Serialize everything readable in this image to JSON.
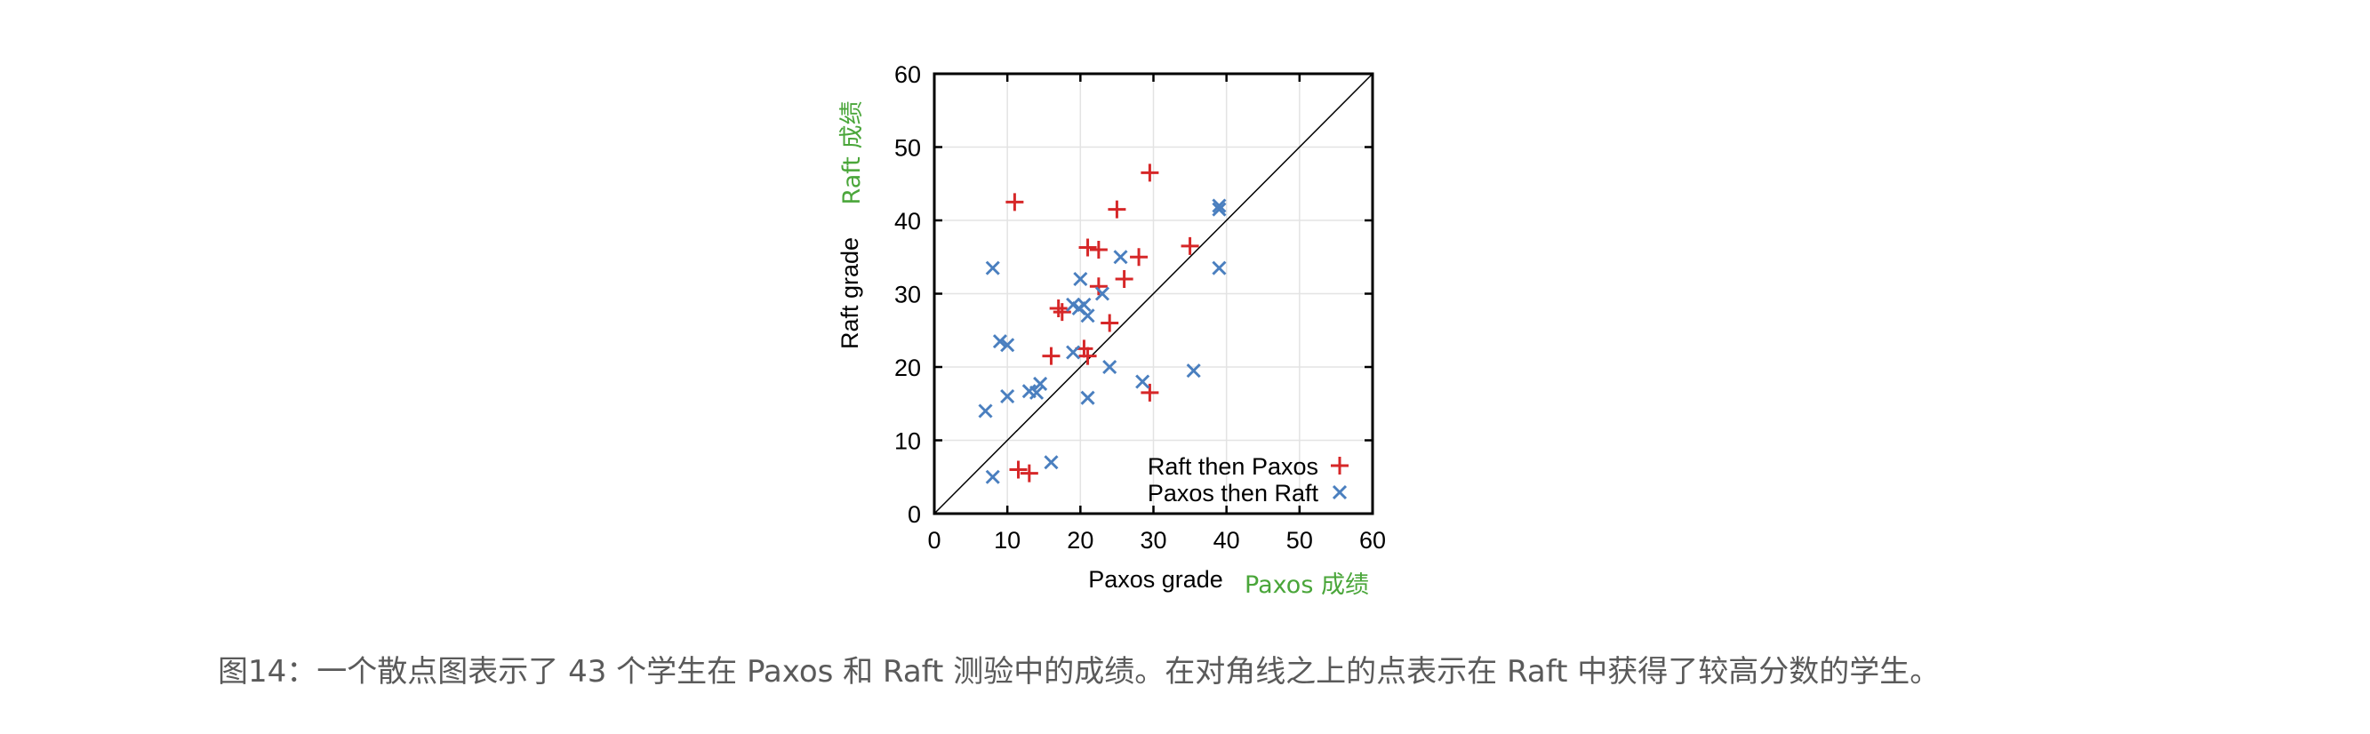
{
  "chart_data": {
    "type": "scatter",
    "title": "",
    "xlabel": "Paxos grade",
    "xlabel_translation": "Paxos 成绩",
    "ylabel": "Raft grade",
    "ylabel_translation": "Raft 成绩",
    "xlim": [
      0,
      60
    ],
    "ylim": [
      0,
      60
    ],
    "xticks": [
      0,
      10,
      20,
      30,
      40,
      50,
      60
    ],
    "yticks": [
      0,
      10,
      20,
      30,
      40,
      50,
      60
    ],
    "grid": true,
    "diagonal_line": true,
    "legend_position": "lower right",
    "series": [
      {
        "name": "Raft then Paxos",
        "marker": "+",
        "color": "#d62728",
        "points": [
          [
            11,
            42.5
          ],
          [
            29.5,
            46.5
          ],
          [
            25,
            41.5
          ],
          [
            21,
            36.3
          ],
          [
            22.5,
            36
          ],
          [
            28,
            35
          ],
          [
            35,
            36.5
          ],
          [
            26,
            32
          ],
          [
            22.5,
            31
          ],
          [
            17,
            28
          ],
          [
            17.5,
            27.5
          ],
          [
            24,
            26
          ],
          [
            16,
            21.5
          ],
          [
            20.5,
            22.5
          ],
          [
            21,
            21.5
          ],
          [
            29.5,
            16.5
          ],
          [
            11.5,
            6
          ],
          [
            13,
            5.5
          ]
        ]
      },
      {
        "name": "Paxos then Raft",
        "marker": "x",
        "color": "#4a7fbf",
        "points": [
          [
            8,
            33.5
          ],
          [
            25.5,
            35
          ],
          [
            39,
            42
          ],
          [
            39,
            41.5
          ],
          [
            39,
            33.5
          ],
          [
            20,
            32
          ],
          [
            23,
            30
          ],
          [
            19,
            28.5
          ],
          [
            20.5,
            28.5
          ],
          [
            19.8,
            28
          ],
          [
            21,
            27
          ],
          [
            9,
            23.5
          ],
          [
            10,
            23
          ],
          [
            19,
            22
          ],
          [
            24,
            20
          ],
          [
            35.5,
            19.5
          ],
          [
            28.5,
            18
          ],
          [
            14.5,
            17.7
          ],
          [
            13,
            16.7
          ],
          [
            14,
            16.5
          ],
          [
            10,
            16
          ],
          [
            21,
            15.8
          ],
          [
            7,
            14
          ],
          [
            16,
            7
          ],
          [
            8,
            5
          ]
        ]
      }
    ]
  },
  "labels": {
    "xlabel": "Paxos grade",
    "xlabel_cn": "Paxos 成绩",
    "ylabel": "Raft grade",
    "ylabel_cn": "Raft 成绩",
    "legend": [
      "Raft then Paxos",
      "Paxos then Raft"
    ]
  },
  "colors": {
    "translation_green": "#4aa63a",
    "caption_gray": "#5a5a5a",
    "grid": "#e3e3e3"
  },
  "caption": "图14：一个散点图表示了 43 个学生在 Paxos 和 Raft 测验中的成绩。在对角线之上的点表示在 Raft 中获得了较高分数的学生。"
}
